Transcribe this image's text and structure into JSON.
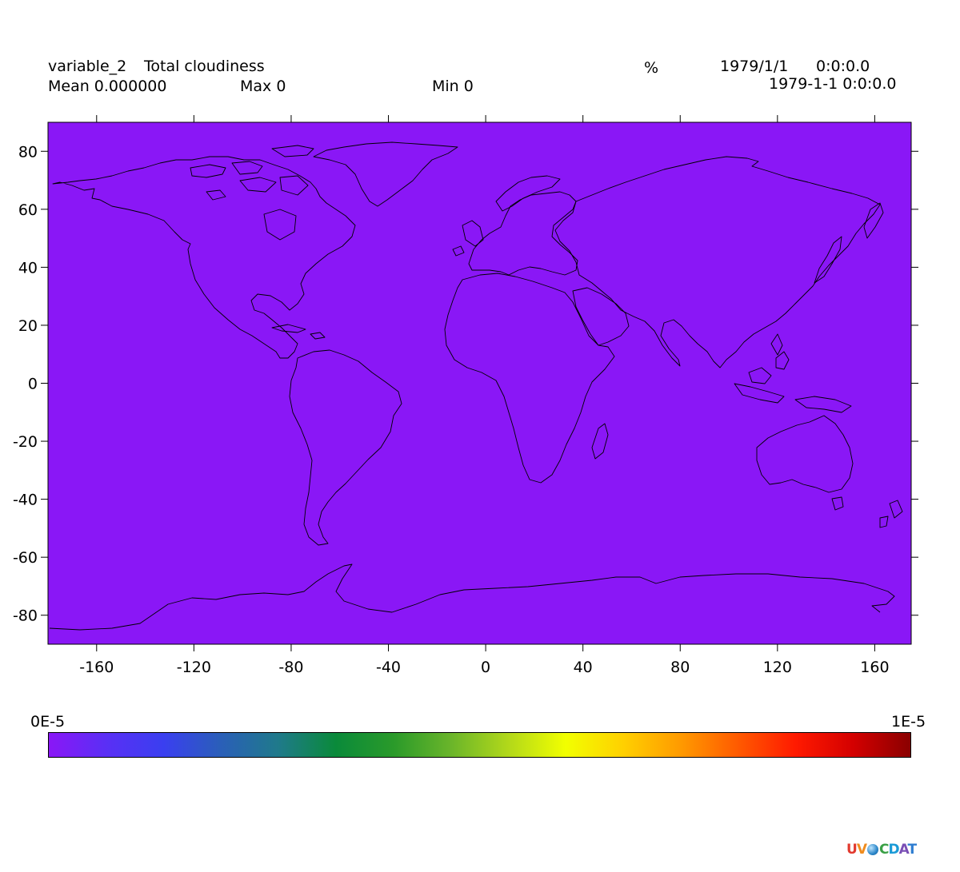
{
  "header": {
    "variable_name": "variable_2",
    "long_name": "Total cloudiness",
    "units": "%",
    "date": "1979/1/1",
    "time": "0:0:0.0",
    "datetime": "1979-1-1 0:0:0.0",
    "mean_label": "Mean 0.000000",
    "max_label": "Max 0",
    "min_label": "Min 0"
  },
  "map": {
    "fill_color": "#8a17f6",
    "coastline_color": "#000000",
    "lon_range": [
      -180,
      175
    ],
    "lat_range": [
      -90,
      90
    ],
    "x_ticks": [
      -160,
      -120,
      -80,
      -40,
      0,
      40,
      80,
      120,
      160
    ],
    "y_ticks": [
      80,
      60,
      40,
      20,
      0,
      -20,
      -40,
      -60,
      -80
    ]
  },
  "colorbar": {
    "min_label": "0E-5",
    "max_label": "1E-5",
    "colors": [
      "#8a17f6",
      "#5a2ff5",
      "#3a3ff0",
      "#2a5fb8",
      "#1f7a8a",
      "#0a8a3a",
      "#2a9a2a",
      "#6ab52a",
      "#b2d81a",
      "#f2ff00",
      "#ffd000",
      "#ff9a00",
      "#ff5a00",
      "#ff1a00",
      "#d40000",
      "#8a0000"
    ]
  },
  "logo": {
    "text": "UV-CDAT"
  }
}
